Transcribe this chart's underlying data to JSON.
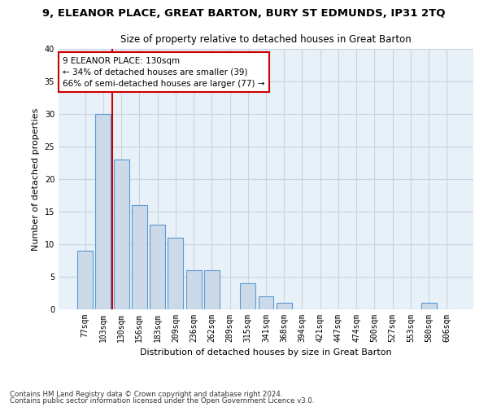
{
  "title": "9, ELEANOR PLACE, GREAT BARTON, BURY ST EDMUNDS, IP31 2TQ",
  "subtitle": "Size of property relative to detached houses in Great Barton",
  "xlabel": "Distribution of detached houses by size in Great Barton",
  "ylabel": "Number of detached properties",
  "footnote1": "Contains HM Land Registry data © Crown copyright and database right 2024.",
  "footnote2": "Contains public sector information licensed under the Open Government Licence v3.0.",
  "bar_labels": [
    "77sqm",
    "103sqm",
    "130sqm",
    "156sqm",
    "183sqm",
    "209sqm",
    "236sqm",
    "262sqm",
    "289sqm",
    "315sqm",
    "341sqm",
    "368sqm",
    "394sqm",
    "421sqm",
    "447sqm",
    "474sqm",
    "500sqm",
    "527sqm",
    "553sqm",
    "580sqm",
    "606sqm"
  ],
  "bar_values": [
    9,
    30,
    23,
    16,
    13,
    11,
    6,
    6,
    0,
    4,
    2,
    1,
    0,
    0,
    0,
    0,
    0,
    0,
    0,
    1,
    0
  ],
  "bar_color": "#ccd9e8",
  "bar_edgecolor": "#5b9bd5",
  "highlight_index": 2,
  "highlight_line_color": "#cc0000",
  "annotation_line1": "9 ELEANOR PLACE: 130sqm",
  "annotation_line2": "← 34% of detached houses are smaller (39)",
  "annotation_line3": "66% of semi-detached houses are larger (77) →",
  "annotation_box_color": "#cc0000",
  "ylim": [
    0,
    40
  ],
  "yticks": [
    0,
    5,
    10,
    15,
    20,
    25,
    30,
    35,
    40
  ],
  "grid_color": "#c8d4e0",
  "bg_color": "#e8f0f8",
  "title_fontsize": 9.5,
  "subtitle_fontsize": 8.5,
  "tick_fontsize": 7,
  "ylabel_fontsize": 8,
  "xlabel_fontsize": 8
}
